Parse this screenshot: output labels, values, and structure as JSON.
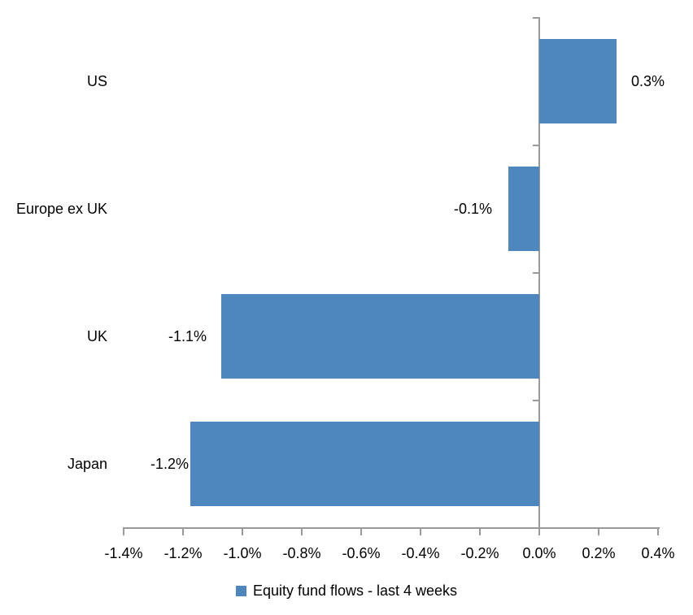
{
  "chart_data": {
    "type": "bar",
    "orientation": "horizontal",
    "title": "",
    "xlabel": "",
    "ylabel": "",
    "units": "percent",
    "categories": [
      "US",
      "Europe ex UK",
      "UK",
      "Japan"
    ],
    "series": [
      {
        "name": "Equity fund flows - last 4 weeks",
        "values": [
          0.3,
          -0.1,
          -1.1,
          -1.2
        ],
        "values_measured": [
          0.26,
          -0.105,
          -1.07,
          -1.175
        ],
        "labels": [
          "0.3%",
          "-0.1%",
          "-1.1%",
          "-1.2%"
        ]
      }
    ],
    "xlim": [
      -1.4,
      0.4
    ],
    "x_tick_values": [
      -1.4,
      -1.2,
      -1.0,
      -0.8,
      -0.6,
      -0.4,
      -0.2,
      0.0,
      0.2,
      0.4
    ],
    "x_tick_labels": [
      "-1.4%",
      "-1.2%",
      "-1.0%",
      "-0.8%",
      "-0.6%",
      "-0.4%",
      "-0.2%",
      "0.0%",
      "0.2%",
      "0.4%"
    ],
    "grid": false,
    "legend_position": "bottom",
    "data_label_position": "outside-end",
    "colors": {
      "bar": "#4E86BE",
      "axis": "#9A9A9A",
      "text": "#000000",
      "background": "#FFFFFF"
    }
  },
  "legend": {
    "label": "Equity fund flows - last 4 weeks"
  }
}
